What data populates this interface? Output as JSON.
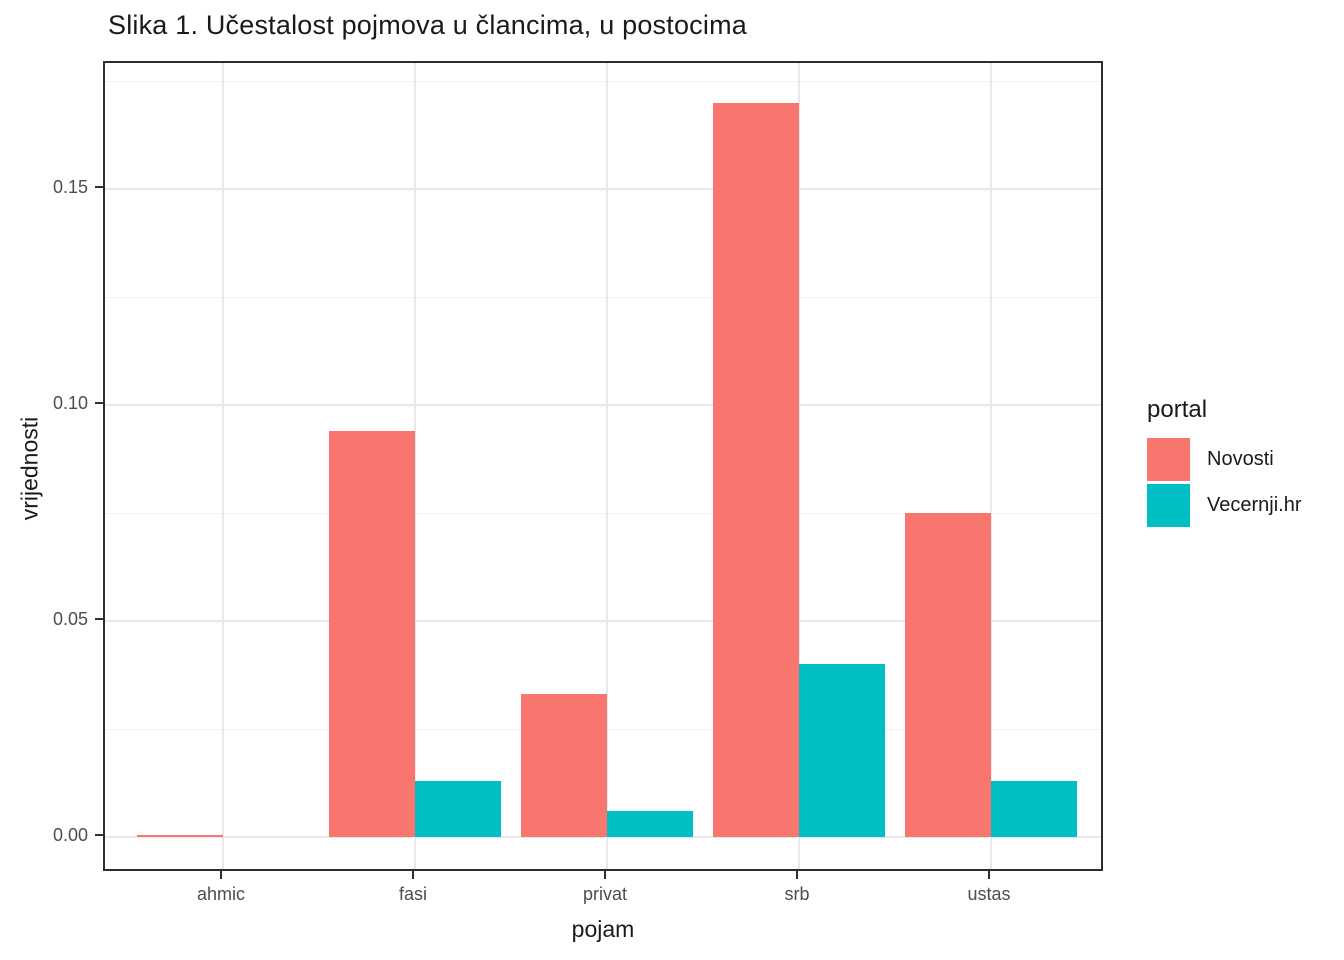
{
  "title": "Slika 1. Učestalost pojmova u člancima, u postocima",
  "colors": {
    "novosti": "#F8766D",
    "vecernji": "#00BFC4",
    "grid_major": "#E8E8E8",
    "grid_minor": "#F1F1F1",
    "panel_border": "#2e2e2e",
    "tick_text": "#4d4d4d",
    "title_text": "#1a1a1a"
  },
  "chart_data": {
    "type": "bar",
    "title": "Slika 1. Učestalost pojmova u člancima, u postocima",
    "xlabel": "pojam",
    "ylabel": "vrijednosti",
    "categories": [
      "ahmic",
      "fasi",
      "privat",
      "srb",
      "ustas"
    ],
    "series": [
      {
        "name": "Novosti",
        "color": "#F8766D",
        "values": [
          0.0004,
          0.094,
          0.033,
          0.17,
          0.075
        ]
      },
      {
        "name": "Vecernji.hr",
        "color": "#00BFC4",
        "values": [
          0.0,
          0.013,
          0.006,
          0.04,
          0.013
        ]
      }
    ],
    "y_ticks": [
      0.0,
      0.05,
      0.1,
      0.15
    ],
    "y_tick_labels": [
      "0.00",
      "0.05",
      "0.10",
      "0.15"
    ],
    "y_minor_ticks": [
      0.025,
      0.075,
      0.125,
      0.175
    ],
    "ylim": [
      -0.0085,
      0.1785
    ],
    "grid": true,
    "legend_position": "right",
    "legend_title": "portal"
  },
  "legend": {
    "title": "portal",
    "items": [
      {
        "label": "Novosti",
        "color": "#F8766D"
      },
      {
        "label": "Vecernji.hr",
        "color": "#00BFC4"
      }
    ]
  }
}
